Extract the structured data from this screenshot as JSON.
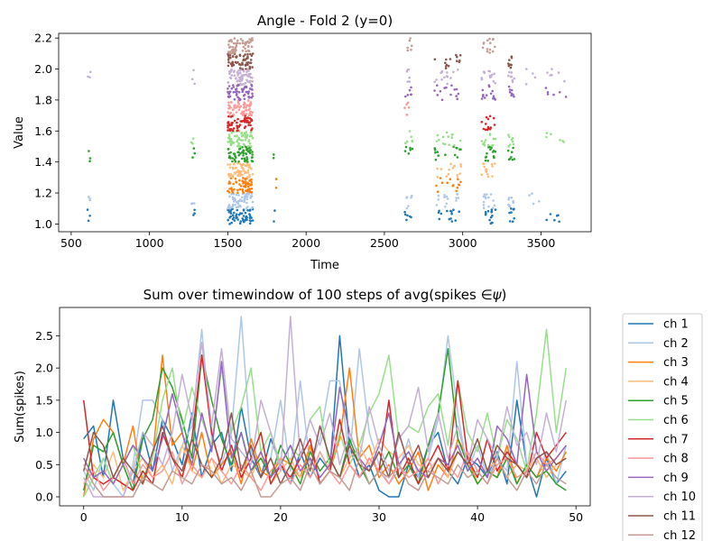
{
  "chart_data": [
    {
      "type": "scatter",
      "title": "Angle - Fold 2 (y=0)",
      "xlabel": "Time",
      "ylabel": "Value",
      "xlim": [
        420,
        3820
      ],
      "ylim": [
        0.95,
        2.23
      ],
      "xticks": [
        500,
        1000,
        1500,
        2000,
        2500,
        3000,
        3500
      ],
      "yticks": [
        1.0,
        1.2,
        1.4,
        1.6,
        1.8,
        2.0,
        2.2
      ],
      "xtick_labels": [
        "500",
        "1000",
        "1500",
        "2000",
        "2500",
        "3000",
        "3500"
      ],
      "ytick_labels": [
        "1.0",
        "1.2",
        "1.4",
        "1.6",
        "1.8",
        "2.0",
        "2.2"
      ],
      "grid": false,
      "levels": [
        {
          "y": 1.05,
          "color": "#1f77b4"
        },
        {
          "y": 1.15,
          "color": "#aec7e8"
        },
        {
          "y": 1.25,
          "color": "#ff7f0e"
        },
        {
          "y": 1.35,
          "color": "#ffbb78"
        },
        {
          "y": 1.45,
          "color": "#2ca02c"
        },
        {
          "y": 1.55,
          "color": "#98df8a"
        },
        {
          "y": 1.65,
          "color": "#d62728"
        },
        {
          "y": 1.75,
          "color": "#ff9896"
        },
        {
          "y": 1.85,
          "color": "#9467bd"
        },
        {
          "y": 1.95,
          "color": "#c5b0d5"
        },
        {
          "y": 2.05,
          "color": "#8c564b"
        },
        {
          "y": 2.15,
          "color": "#c49c94"
        }
      ],
      "bursts": [
        {
          "x0": 605,
          "x1": 625,
          "levels": [
            0,
            1,
            4,
            9
          ],
          "n": 3
        },
        {
          "x0": 1265,
          "x1": 1290,
          "levels": [
            0,
            1,
            4,
            5,
            9
          ],
          "n": 3
        },
        {
          "x0": 1500,
          "x1": 1660,
          "levels": [
            0,
            1,
            2,
            3,
            4,
            5,
            6,
            7,
            8,
            9,
            10,
            11
          ],
          "n": 60
        },
        {
          "x0": 1790,
          "x1": 1810,
          "levels": [
            0,
            2,
            4
          ],
          "n": 2
        },
        {
          "x0": 2630,
          "x1": 2680,
          "levels": [
            0,
            1,
            4,
            5,
            7,
            8,
            9,
            11
          ],
          "n": 6
        },
        {
          "x0": 2820,
          "x1": 2990,
          "levels": [
            0,
            1,
            2,
            3,
            4,
            5,
            8,
            9,
            10
          ],
          "n": 14
        },
        {
          "x0": 3120,
          "x1": 3210,
          "levels": [
            0,
            1,
            3,
            4,
            5,
            6,
            8,
            9,
            11
          ],
          "n": 14
        },
        {
          "x0": 3290,
          "x1": 3330,
          "levels": [
            0,
            1,
            4,
            5,
            8,
            9,
            10
          ],
          "n": 8
        },
        {
          "x0": 3400,
          "x1": 3490,
          "levels": [
            1,
            9
          ],
          "n": 4
        },
        {
          "x0": 3530,
          "x1": 3660,
          "levels": [
            0,
            5,
            8,
            9
          ],
          "n": 6
        }
      ]
    },
    {
      "type": "line",
      "title": "Sum over timewindow of 100 steps of avg(spikes ∈ψ)",
      "title_prefix": "Sum over timewindow of 100 steps of avg(spikes ",
      "title_symbol": "∈",
      "title_psi": "ψ",
      "title_suffix": ")",
      "xlabel": "",
      "ylabel": "Sum(spikes)",
      "xlim": [
        -2.45,
        51.45
      ],
      "ylim": [
        -0.14,
        2.94
      ],
      "xticks": [
        0,
        10,
        20,
        30,
        40,
        50
      ],
      "yticks": [
        0.0,
        0.5,
        1.0,
        1.5,
        2.0,
        2.5
      ],
      "xtick_labels": [
        "0",
        "10",
        "20",
        "30",
        "40",
        "50"
      ],
      "ytick_labels": [
        "0.0",
        "0.5",
        "1.0",
        "1.5",
        "2.0",
        "2.5"
      ],
      "grid": false,
      "legend_position": "outside-right",
      "series": [
        {
          "name": "ch 1",
          "color": "#1f77b4",
          "values": [
            0.9,
            1.1,
            0.3,
            1.5,
            0.6,
            0.2,
            1.0,
            0.4,
            1.2,
            0.9,
            0.5,
            1.3,
            0.3,
            0.8,
            1.0,
            0.4,
            1.4,
            0.6,
            0.3,
            0.9,
            0.5,
            0.2,
            0.7,
            0.3,
            0.6,
            0.4,
            2.5,
            0.8,
            0.3,
            0.5,
            0.1,
            0.0,
            0.0,
            0.5,
            0.3,
            0.8,
            1.0,
            0.4,
            0.2,
            0.6,
            0.5,
            0.3,
            0.7,
            0.2,
            1.5,
            0.5,
            0.0,
            0.6,
            0.2,
            0.4
          ]
        },
        {
          "name": "ch 2",
          "color": "#aec7e8",
          "values": [
            0.4,
            0.1,
            0.6,
            0.2,
            0.0,
            0.5,
            1.5,
            1.5,
            1.2,
            0.4,
            0.8,
            1.1,
            2.6,
            0.9,
            0.5,
            1.0,
            2.8,
            0.7,
            0.3,
            0.6,
            1.5,
            0.4,
            1.8,
            0.5,
            0.9,
            1.8,
            1.8,
            0.6,
            2.3,
            1.0,
            0.5,
            0.2,
            0.4,
            0.9,
            0.3,
            0.6,
            1.2,
            2.5,
            1.3,
            0.4,
            0.8,
            0.3,
            0.6,
            0.4,
            2.1,
            0.5,
            0.3,
            0.7,
            0.2,
            0.8
          ]
        },
        {
          "name": "ch 3",
          "color": "#ff7f0e",
          "values": [
            0.0,
            0.9,
            1.2,
            1.0,
            0.5,
            1.1,
            0.2,
            0.6,
            2.2,
            0.8,
            1.0,
            0.4,
            1.0,
            0.3,
            0.5,
            0.7,
            0.2,
            0.9,
            0.4,
            0.3,
            0.6,
            0.5,
            0.3,
            0.8,
            0.2,
            0.4,
            0.9,
            2.0,
            0.6,
            0.8,
            0.3,
            0.5,
            0.2,
            0.4,
            0.7,
            0.1,
            0.5,
            0.3,
            0.9,
            0.6,
            0.2,
            0.4,
            0.3,
            0.8,
            0.2,
            0.5,
            0.3,
            0.6,
            0.4,
            0.7
          ]
        },
        {
          "name": "ch 4",
          "color": "#ffbb78",
          "values": [
            0.2,
            0.5,
            0.3,
            0.7,
            0.1,
            0.4,
            0.6,
            0.3,
            0.5,
            0.2,
            0.8,
            0.4,
            0.3,
            0.6,
            0.2,
            0.5,
            0.4,
            0.3,
            0.7,
            0.2,
            0.4,
            0.6,
            0.3,
            0.5,
            0.2,
            0.4,
            0.3,
            0.6,
            0.8,
            0.5,
            0.9,
            0.7,
            0.6,
            0.8,
            0.5,
            0.4,
            0.6,
            0.3,
            0.7,
            0.5,
            0.2,
            0.4,
            0.6,
            0.3,
            0.5,
            0.4,
            0.6,
            0.3,
            0.5,
            0.6
          ]
        },
        {
          "name": "ch 5",
          "color": "#2ca02c",
          "values": [
            0.1,
            0.8,
            0.7,
            1.0,
            0.5,
            0.1,
            0.9,
            1.2,
            2.0,
            1.7,
            1.2,
            0.6,
            2.2,
            1.5,
            0.9,
            0.5,
            1.0,
            0.4,
            0.6,
            0.3,
            0.8,
            0.5,
            0.2,
            0.7,
            0.4,
            0.6,
            0.3,
            0.9,
            0.5,
            0.2,
            0.4,
            0.7,
            0.3,
            0.5,
            0.2,
            0.8,
            1.3,
            2.3,
            0.9,
            0.5,
            0.2,
            0.4,
            0.3,
            0.6,
            0.2,
            0.5,
            0.3,
            0.4,
            0.2,
            0.1
          ]
        },
        {
          "name": "ch 6",
          "color": "#98df8a",
          "values": [
            0.0,
            0.3,
            0.6,
            0.2,
            0.5,
            0.8,
            0.3,
            0.6,
            1.5,
            2.0,
            1.0,
            1.7,
            1.2,
            0.8,
            2.0,
            1.0,
            1.4,
            2.0,
            0.7,
            1.0,
            0.5,
            0.8,
            0.6,
            1.2,
            1.4,
            0.4,
            1.0,
            0.5,
            0.8,
            1.3,
            1.6,
            2.2,
            0.9,
            1.1,
            1.0,
            1.4,
            1.6,
            0.8,
            1.8,
            1.0,
            0.7,
            1.3,
            0.6,
            1.2,
            0.9,
            0.4,
            1.3,
            2.6,
            1.0,
            2.0
          ]
        },
        {
          "name": "ch 7",
          "color": "#d62728",
          "values": [
            1.5,
            0.3,
            0.2,
            0.3,
            0.2,
            0.1,
            0.4,
            0.2,
            1.0,
            0.6,
            0.3,
            0.9,
            2.2,
            1.0,
            0.4,
            0.8,
            0.3,
            0.6,
            1.0,
            0.2,
            0.5,
            0.3,
            0.6,
            0.9,
            0.2,
            0.4,
            1.2,
            0.5,
            0.3,
            0.6,
            0.4,
            1.5,
            0.3,
            0.6,
            0.2,
            0.5,
            0.8,
            0.4,
            1.8,
            0.6,
            0.3,
            0.9,
            0.4,
            0.7,
            0.5,
            0.3,
            1.0,
            0.6,
            0.8,
            1.0
          ]
        },
        {
          "name": "ch 8",
          "color": "#ff9896",
          "values": [
            0.2,
            0.4,
            0.1,
            0.3,
            0.6,
            0.2,
            0.5,
            0.3,
            0.4,
            0.7,
            0.2,
            0.5,
            0.3,
            0.6,
            0.4,
            0.2,
            0.5,
            0.3,
            0.1,
            0.4,
            0.6,
            0.2,
            0.5,
            0.3,
            0.7,
            0.4,
            0.2,
            0.5,
            0.3,
            0.6,
            0.4,
            0.2,
            0.5,
            0.3,
            0.4,
            0.6,
            0.2,
            0.5,
            0.3,
            0.7,
            0.4,
            0.2,
            0.5,
            0.6,
            0.3,
            0.4,
            0.7,
            0.5,
            0.6,
            0.8
          ]
        },
        {
          "name": "ch 9",
          "color": "#9467bd",
          "values": [
            0.6,
            0.3,
            0.4,
            0.2,
            0.5,
            0.8,
            0.6,
            0.4,
            0.9,
            1.6,
            1.0,
            0.5,
            1.3,
            0.7,
            2.1,
            0.6,
            1.0,
            0.4,
            0.7,
            0.3,
            0.5,
            0.8,
            0.4,
            0.6,
            0.3,
            0.5,
            1.7,
            1.0,
            0.6,
            0.4,
            0.8,
            1.3,
            0.5,
            0.7,
            0.4,
            0.3,
            0.6,
            0.5,
            0.8,
            0.4,
            0.6,
            0.3,
            1.1,
            0.9,
            0.5,
            1.9,
            0.7,
            0.4,
            0.6,
            0.8
          ]
        },
        {
          "name": "ch 10",
          "color": "#c5b0d5",
          "values": [
            0.3,
            0.0,
            0.0,
            0.0,
            0.0,
            0.4,
            1.0,
            0.8,
            0.5,
            1.0,
            1.9,
            1.2,
            2.4,
            1.1,
            2.3,
            0.9,
            0.7,
            0.5,
            1.5,
            1.0,
            0.4,
            2.8,
            0.6,
            1.2,
            0.8,
            1.3,
            0.5,
            1.0,
            0.6,
            1.4,
            0.8,
            0.4,
            0.9,
            1.1,
            1.7,
            0.7,
            1.3,
            0.6,
            1.1,
            0.5,
            1.2,
            0.9,
            0.6,
            1.4,
            0.8,
            1.0,
            0.5,
            1.3,
            0.7,
            1.5
          ]
        },
        {
          "name": "ch 11",
          "color": "#8c564b",
          "values": [
            0.4,
            1.0,
            0.8,
            0.3,
            0.6,
            0.4,
            0.2,
            0.7,
            1.1,
            0.6,
            0.4,
            0.9,
            0.5,
            0.3,
            0.6,
            1.3,
            0.4,
            0.8,
            0.3,
            0.6,
            0.2,
            0.5,
            0.9,
            0.4,
            1.1,
            0.6,
            0.3,
            0.8,
            0.5,
            0.4,
            0.7,
            0.3,
            1.0,
            0.5,
            0.8,
            0.3,
            0.6,
            0.4,
            0.7,
            0.5,
            0.9,
            0.4,
            0.8,
            0.6,
            0.5,
            0.3,
            0.6,
            0.7,
            0.5,
            0.6
          ]
        },
        {
          "name": "ch 12",
          "color": "#c49c94",
          "values": [
            0.5,
            0.2,
            0.0,
            0.0,
            0.0,
            0.0,
            0.3,
            0.2,
            0.1,
            0.4,
            0.3,
            0.2,
            0.5,
            0.4,
            0.2,
            0.3,
            0.1,
            0.4,
            0.0,
            0.0,
            0.2,
            0.3,
            0.1,
            0.5,
            0.2,
            0.4,
            0.3,
            0.1,
            0.6,
            0.2,
            0.4,
            0.3,
            0.5,
            0.2,
            0.1,
            0.4,
            0.3,
            0.2,
            0.5,
            0.3,
            0.4,
            0.2,
            0.6,
            0.3,
            0.1,
            0.4,
            0.2,
            0.5,
            0.3,
            0.2
          ]
        }
      ]
    }
  ]
}
